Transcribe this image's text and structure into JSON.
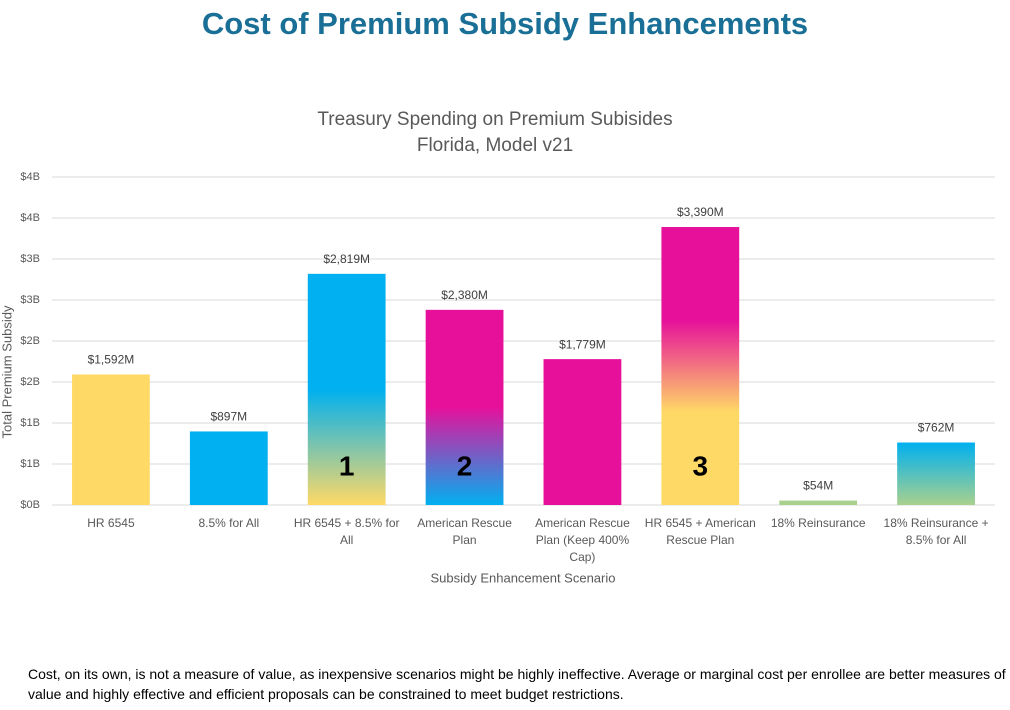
{
  "header": {
    "title": "Cost of Premium Subsidy Enhancements"
  },
  "chart_data": {
    "type": "bar",
    "title": "Treasury Spending on Premium Subisides",
    "subtitle": "Florida, Model v21",
    "x_label": "Subsidy Enhancement Scenario",
    "y_label": "Total Premium Subsidy",
    "categories": [
      "HR 6545",
      "8.5% for All",
      "HR 6545 + 8.5% for All",
      "American Rescue Plan",
      "American Rescue Plan (Keep 400% Cap)",
      "HR 6545 + American Rescue Plan",
      "18% Reinsurance",
      "18% Reinsurance + 8.5% for All"
    ],
    "values": [
      1592,
      897,
      2819,
      2380,
      1779,
      3390,
      54,
      762
    ],
    "value_labels": [
      "$1,592M",
      "$897M",
      "$2,819M",
      "$2,380M",
      "$1,779M",
      "$3,390M",
      "$54M",
      "$762M"
    ],
    "colors": [
      [
        "#ffd966"
      ],
      [
        "#00b0f0"
      ],
      [
        "#00b0f0",
        "#00b0f0",
        "#ffd966"
      ],
      [
        "#e6109b",
        "#e6109b",
        "#00b0f0"
      ],
      [
        "#e6109b"
      ],
      [
        "#e6109b",
        "#e6109b",
        "#ffd966",
        "#ffd966"
      ],
      [
        "#a9d18e"
      ],
      [
        "#00b0f0",
        "#a9d18e"
      ]
    ],
    "bar_annotations": [
      null,
      null,
      "1",
      "2",
      null,
      "3",
      null,
      null
    ],
    "ylim": [
      0,
      4000
    ],
    "yticks": [
      {
        "value": 0,
        "label": "$0B"
      },
      {
        "value": 500,
        "label": "$1B"
      },
      {
        "value": 1000,
        "label": "$1B"
      },
      {
        "value": 1500,
        "label": "$2B"
      },
      {
        "value": 2000,
        "label": "$2B"
      },
      {
        "value": 2500,
        "label": "$3B"
      },
      {
        "value": 3000,
        "label": "$3B"
      },
      {
        "value": 3500,
        "label": "$4B"
      },
      {
        "value": 4000,
        "label": "$4B"
      }
    ],
    "grid": true
  },
  "footnote": "Cost, on its own, is not a measure of value, as inexpensive scenarios might be highly ineffective.  Average or marginal cost per enrollee are better measures of value and highly effective and efficient proposals can be constrained to meet budget restrictions."
}
